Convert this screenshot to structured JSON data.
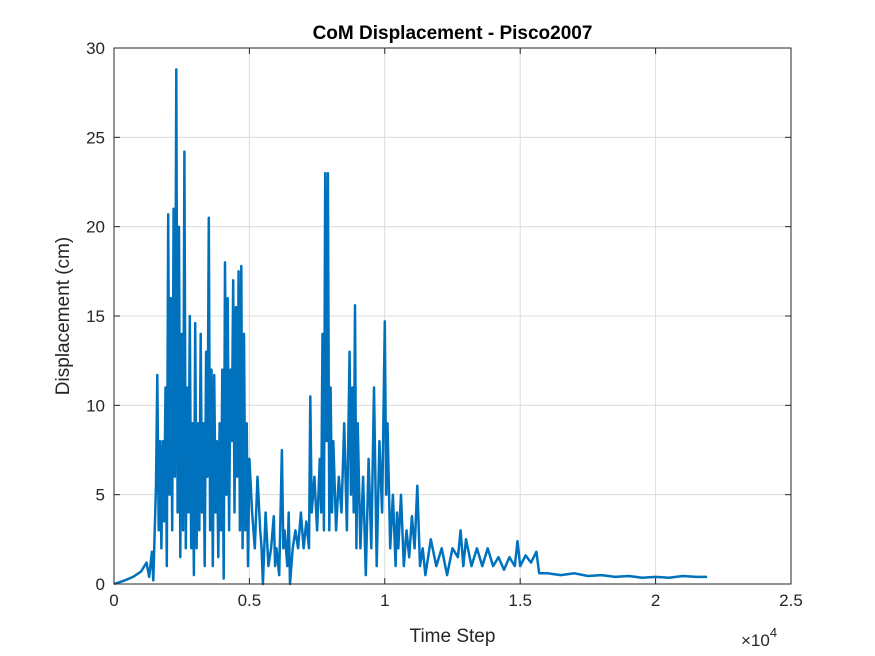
{
  "chart_data": {
    "type": "line",
    "title": "CoM Displacement - Pisco2007",
    "xlabel": "Time Step",
    "ylabel": "Displacement (cm)",
    "xlim": [
      0,
      25000
    ],
    "ylim": [
      0,
      30
    ],
    "x_ticks": [
      0,
      5000,
      10000,
      15000,
      20000,
      25000
    ],
    "x_tick_labels": [
      "0",
      "0.5",
      "1",
      "1.5",
      "2",
      "2.5"
    ],
    "x_exponent_base": "×10",
    "x_exponent_power": "4",
    "y_ticks": [
      0,
      5,
      10,
      15,
      20,
      25,
      30
    ],
    "y_tick_labels": [
      "0",
      "5",
      "10",
      "15",
      "20",
      "25",
      "30"
    ],
    "grid": true,
    "series_color": "#0072BD",
    "series": [
      {
        "points": [
          [
            0,
            0
          ],
          [
            400,
            0.2
          ],
          [
            700,
            0.4
          ],
          [
            1000,
            0.7
          ],
          [
            1200,
            1.2
          ],
          [
            1300,
            0.4
          ],
          [
            1400,
            1.8
          ],
          [
            1450,
            0.2
          ],
          [
            1550,
            5.5
          ],
          [
            1600,
            11.7
          ],
          [
            1650,
            3
          ],
          [
            1700,
            8
          ],
          [
            1750,
            2
          ],
          [
            1800,
            8
          ],
          [
            1850,
            3.5
          ],
          [
            1900,
            11
          ],
          [
            1950,
            1
          ],
          [
            2000,
            20.7
          ],
          [
            2050,
            5
          ],
          [
            2100,
            16
          ],
          [
            2150,
            3
          ],
          [
            2200,
            21
          ],
          [
            2250,
            6
          ],
          [
            2300,
            28.8
          ],
          [
            2350,
            4
          ],
          [
            2400,
            20
          ],
          [
            2450,
            1.5
          ],
          [
            2500,
            14
          ],
          [
            2550,
            3
          ],
          [
            2600,
            24.2
          ],
          [
            2650,
            2
          ],
          [
            2700,
            11
          ],
          [
            2750,
            4
          ],
          [
            2800,
            15
          ],
          [
            2850,
            2
          ],
          [
            2900,
            9
          ],
          [
            2950,
            0.5
          ],
          [
            3000,
            14.6
          ],
          [
            3050,
            2
          ],
          [
            3100,
            9
          ],
          [
            3150,
            3
          ],
          [
            3200,
            14
          ],
          [
            3250,
            4
          ],
          [
            3300,
            9
          ],
          [
            3350,
            1
          ],
          [
            3400,
            13
          ],
          [
            3450,
            6
          ],
          [
            3500,
            20.5
          ],
          [
            3550,
            3
          ],
          [
            3600,
            12
          ],
          [
            3650,
            1
          ],
          [
            3700,
            11.7
          ],
          [
            3750,
            4
          ],
          [
            3800,
            8
          ],
          [
            3850,
            1.5
          ],
          [
            3900,
            9
          ],
          [
            3950,
            3
          ],
          [
            4000,
            12
          ],
          [
            4050,
            0.3
          ],
          [
            4100,
            18
          ],
          [
            4150,
            5
          ],
          [
            4200,
            16
          ],
          [
            4250,
            3
          ],
          [
            4300,
            12
          ],
          [
            4350,
            8
          ],
          [
            4400,
            17
          ],
          [
            4450,
            4
          ],
          [
            4500,
            15.5
          ],
          [
            4550,
            6
          ],
          [
            4600,
            17.5
          ],
          [
            4650,
            3
          ],
          [
            4700,
            17.8
          ],
          [
            4750,
            2
          ],
          [
            4800,
            14
          ],
          [
            4850,
            3
          ],
          [
            4900,
            9
          ],
          [
            4950,
            1
          ],
          [
            5000,
            7
          ],
          [
            5100,
            4
          ],
          [
            5200,
            2
          ],
          [
            5300,
            6
          ],
          [
            5400,
            3
          ],
          [
            5450,
            2
          ],
          [
            5500,
            0
          ],
          [
            5600,
            4
          ],
          [
            5700,
            1
          ],
          [
            5800,
            2
          ],
          [
            5900,
            3.8
          ],
          [
            5950,
            1
          ],
          [
            6000,
            2
          ],
          [
            6100,
            0.5
          ],
          [
            6200,
            7.5
          ],
          [
            6250,
            2
          ],
          [
            6300,
            3
          ],
          [
            6400,
            1
          ],
          [
            6450,
            4
          ],
          [
            6500,
            0
          ],
          [
            6600,
            2
          ],
          [
            6700,
            3
          ],
          [
            6800,
            2
          ],
          [
            6900,
            4
          ],
          [
            7000,
            2
          ],
          [
            7100,
            3.5
          ],
          [
            7200,
            2
          ],
          [
            7250,
            10.5
          ],
          [
            7300,
            4
          ],
          [
            7400,
            6
          ],
          [
            7500,
            3
          ],
          [
            7600,
            7
          ],
          [
            7650,
            4
          ],
          [
            7700,
            14
          ],
          [
            7750,
            3
          ],
          [
            7800,
            23
          ],
          [
            7850,
            8
          ],
          [
            7900,
            23
          ],
          [
            7950,
            3
          ],
          [
            8000,
            11
          ],
          [
            8050,
            4
          ],
          [
            8100,
            8
          ],
          [
            8200,
            3
          ],
          [
            8300,
            6
          ],
          [
            8400,
            4
          ],
          [
            8500,
            9
          ],
          [
            8600,
            3
          ],
          [
            8700,
            13
          ],
          [
            8750,
            5
          ],
          [
            8800,
            11
          ],
          [
            8850,
            4
          ],
          [
            8900,
            15.6
          ],
          [
            8950,
            2
          ],
          [
            9000,
            9
          ],
          [
            9100,
            2
          ],
          [
            9200,
            6
          ],
          [
            9300,
            0.5
          ],
          [
            9400,
            7
          ],
          [
            9500,
            2
          ],
          [
            9600,
            11
          ],
          [
            9700,
            1
          ],
          [
            9800,
            8
          ],
          [
            9900,
            4
          ],
          [
            10000,
            14.7
          ],
          [
            10050,
            5
          ],
          [
            10100,
            9
          ],
          [
            10200,
            2
          ],
          [
            10300,
            5
          ],
          [
            10400,
            1
          ],
          [
            10450,
            4
          ],
          [
            10500,
            2
          ],
          [
            10600,
            5
          ],
          [
            10700,
            1
          ],
          [
            10800,
            3
          ],
          [
            10900,
            1.5
          ],
          [
            11000,
            3.8
          ],
          [
            11100,
            2
          ],
          [
            11200,
            5.5
          ],
          [
            11300,
            1
          ],
          [
            11400,
            2
          ],
          [
            11500,
            0.5
          ],
          [
            11700,
            2.5
          ],
          [
            11900,
            1
          ],
          [
            12100,
            2
          ],
          [
            12300,
            0.5
          ],
          [
            12500,
            2
          ],
          [
            12700,
            1.5
          ],
          [
            12800,
            3
          ],
          [
            12900,
            1
          ],
          [
            13000,
            2.5
          ],
          [
            13200,
            1
          ],
          [
            13400,
            2
          ],
          [
            13600,
            1
          ],
          [
            13800,
            2
          ],
          [
            14000,
            1
          ],
          [
            14200,
            1.5
          ],
          [
            14400,
            0.8
          ],
          [
            14600,
            1.5
          ],
          [
            14800,
            1
          ],
          [
            14900,
            2.4
          ],
          [
            15000,
            1
          ],
          [
            15200,
            1.6
          ],
          [
            15400,
            1.2
          ],
          [
            15600,
            1.8
          ],
          [
            15700,
            0.6
          ],
          [
            16000,
            0.6
          ],
          [
            16500,
            0.5
          ],
          [
            17000,
            0.6
          ],
          [
            17500,
            0.45
          ],
          [
            18000,
            0.5
          ],
          [
            18500,
            0.4
          ],
          [
            19000,
            0.45
          ],
          [
            19500,
            0.35
          ],
          [
            20000,
            0.4
          ],
          [
            20500,
            0.35
          ],
          [
            21000,
            0.45
          ],
          [
            21500,
            0.4
          ],
          [
            21900,
            0.4
          ]
        ]
      }
    ]
  }
}
